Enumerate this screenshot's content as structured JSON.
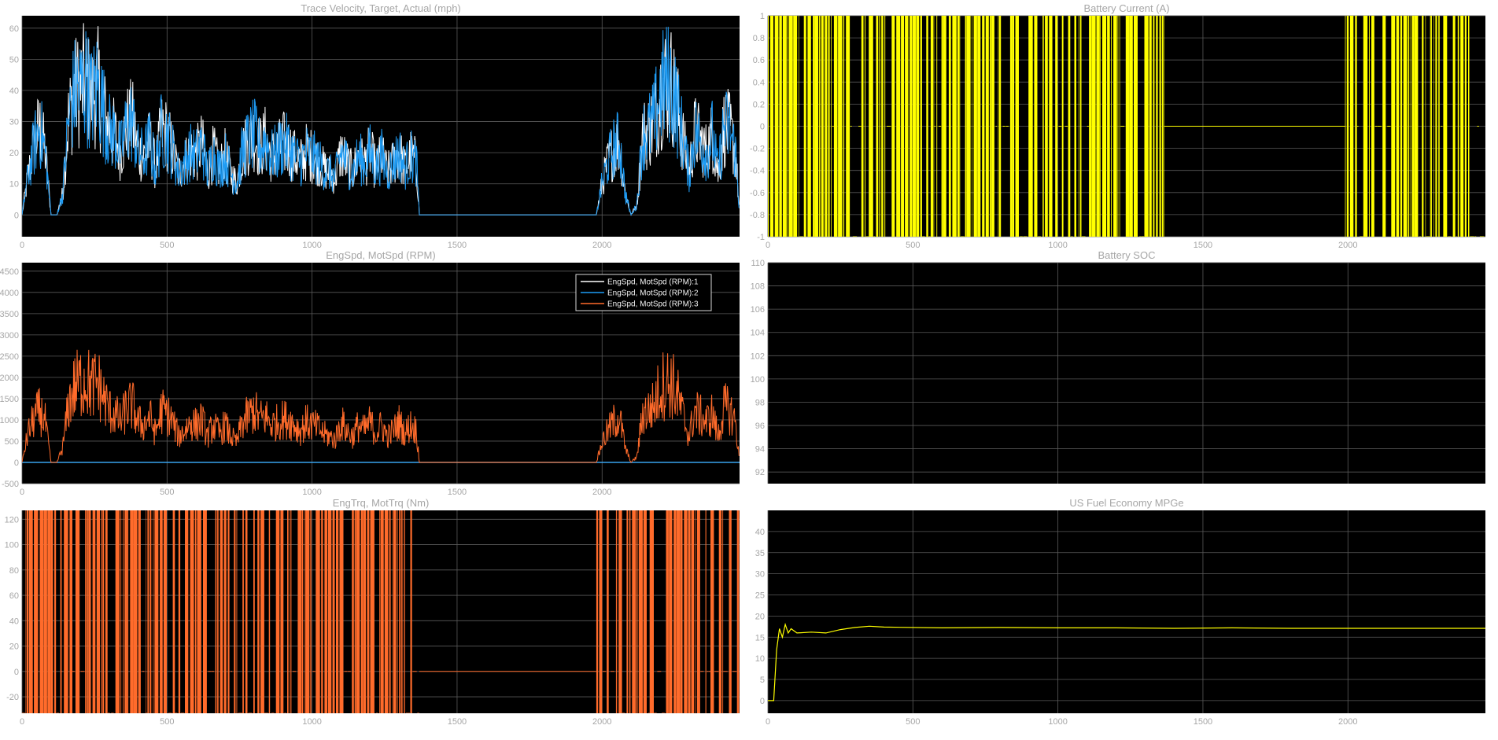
{
  "colors": {
    "background": "#ffffff",
    "axes_bg": "#000000",
    "grid": "#5a5a5a",
    "text": "#a6a6a6",
    "white": "#ffffff",
    "blue": "#1e9cf5",
    "orange": "#ff6b2b",
    "yellow": "#ffff00"
  },
  "chart_data": [
    {
      "id": "trace-velocity",
      "type": "line",
      "title": "Trace Velocity, Target, Actual (mph)",
      "xlim": [
        0,
        2474
      ],
      "ylim": [
        -7,
        64
      ],
      "xticks": [
        0,
        500,
        1000,
        1500,
        2000
      ],
      "xtick_labels": [
        "0",
        "500",
        "1000",
        "1500",
        "2000"
      ],
      "yticks": [
        0,
        10,
        20,
        30,
        40,
        50,
        60
      ],
      "ytick_labels": [
        "0",
        "10",
        "20",
        "30",
        "40",
        "50",
        "60"
      ],
      "grid": true,
      "series": [
        {
          "color": "#ffffff",
          "style": "dense",
          "x": [
            0,
            20,
            40,
            60,
            80,
            100,
            120,
            140,
            160,
            180,
            200,
            220,
            240,
            260,
            280,
            300,
            320,
            340,
            360,
            380,
            400,
            420,
            440,
            460,
            480,
            500,
            520,
            540,
            560,
            580,
            600,
            620,
            640,
            660,
            680,
            700,
            720,
            740,
            760,
            780,
            800,
            820,
            840,
            860,
            880,
            900,
            920,
            940,
            960,
            980,
            1000,
            1020,
            1040,
            1060,
            1080,
            1100,
            1120,
            1140,
            1160,
            1180,
            1200,
            1220,
            1240,
            1260,
            1280,
            1300,
            1320,
            1340,
            1360,
            1370,
            1980,
            2000,
            2020,
            2040,
            2060,
            2080,
            2100,
            2120,
            2140,
            2160,
            2180,
            2200,
            2220,
            2240,
            2260,
            2280,
            2300,
            2320,
            2340,
            2360,
            2380,
            2400,
            2420,
            2440,
            2460,
            2474
          ],
          "y": [
            0,
            18,
            32,
            42,
            30,
            0,
            0,
            10,
            45,
            58,
            60,
            63,
            55,
            62,
            50,
            40,
            38,
            30,
            42,
            45,
            30,
            28,
            35,
            22,
            40,
            38,
            30,
            20,
            25,
            30,
            28,
            34,
            20,
            30,
            22,
            28,
            20,
            15,
            30,
            35,
            38,
            32,
            36,
            28,
            30,
            34,
            32,
            28,
            25,
            30,
            28,
            26,
            22,
            20,
            18,
            30,
            25,
            20,
            28,
            24,
            30,
            22,
            28,
            20,
            25,
            30,
            22,
            28,
            25,
            0,
            0,
            15,
            25,
            32,
            35,
            10,
            0,
            5,
            38,
            40,
            45,
            58,
            63,
            62,
            50,
            35,
            20,
            40,
            35,
            30,
            38,
            20,
            42,
            40,
            30,
            0
          ]
        },
        {
          "color": "#1e9cf5",
          "style": "dense",
          "x": [
            0,
            20,
            40,
            60,
            80,
            100,
            120,
            140,
            160,
            180,
            200,
            220,
            240,
            260,
            280,
            300,
            320,
            340,
            360,
            380,
            400,
            420,
            440,
            460,
            480,
            500,
            520,
            540,
            560,
            580,
            600,
            620,
            640,
            660,
            680,
            700,
            720,
            740,
            760,
            780,
            800,
            820,
            840,
            860,
            880,
            900,
            920,
            940,
            960,
            980,
            1000,
            1020,
            1040,
            1060,
            1080,
            1100,
            1120,
            1140,
            1160,
            1180,
            1200,
            1220,
            1240,
            1260,
            1280,
            1300,
            1320,
            1340,
            1360,
            1370,
            1980,
            2000,
            2020,
            2040,
            2060,
            2080,
            2100,
            2120,
            2140,
            2160,
            2180,
            2200,
            2220,
            2240,
            2260,
            2280,
            2300,
            2320,
            2340,
            2360,
            2380,
            2400,
            2420,
            2440,
            2460,
            2474
          ],
          "y": [
            0,
            18,
            32,
            42,
            30,
            0,
            0,
            10,
            45,
            58,
            60,
            63,
            55,
            62,
            50,
            40,
            38,
            30,
            42,
            45,
            30,
            28,
            35,
            22,
            40,
            38,
            30,
            20,
            25,
            30,
            28,
            34,
            20,
            30,
            22,
            28,
            20,
            15,
            30,
            35,
            38,
            32,
            36,
            28,
            30,
            34,
            32,
            28,
            25,
            30,
            28,
            26,
            22,
            20,
            18,
            30,
            25,
            20,
            28,
            24,
            30,
            22,
            28,
            20,
            25,
            30,
            22,
            28,
            25,
            0,
            0,
            15,
            25,
            32,
            35,
            10,
            0,
            5,
            38,
            40,
            45,
            58,
            63,
            62,
            50,
            35,
            20,
            40,
            35,
            30,
            38,
            20,
            42,
            40,
            30,
            0
          ]
        }
      ]
    },
    {
      "id": "battery-current",
      "type": "line",
      "title": "Battery Current (A)",
      "xlim": [
        0,
        2474
      ],
      "ylim": [
        -1,
        1
      ],
      "xticks": [
        0,
        500,
        1000,
        1500,
        2000
      ],
      "xtick_labels": [
        "0",
        "500",
        "1000",
        "1500",
        "2000"
      ],
      "yticks": [
        -1,
        -0.8,
        -0.6,
        -0.4,
        -0.2,
        0,
        0.2,
        0.4,
        0.6,
        0.8,
        1
      ],
      "ytick_labels": [
        "-1",
        "-0.8",
        "-0.6",
        "-0.4",
        "-0.2",
        "0",
        "0.2",
        "0.4",
        "0.6",
        "0.8",
        "1"
      ],
      "grid": true,
      "series": [
        {
          "color": "#ffff00",
          "style": "square",
          "x": [
            0,
            1370,
            1370,
            1990,
            1990,
            2474
          ],
          "y": [
            1,
            1,
            0,
            0,
            1,
            1
          ]
        }
      ]
    },
    {
      "id": "eng-mot-spd",
      "type": "line",
      "title": "EngSpd, MotSpd (RPM)",
      "xlim": [
        0,
        2474
      ],
      "ylim": [
        -500,
        4700
      ],
      "xticks": [
        0,
        500,
        1000,
        1500,
        2000
      ],
      "xtick_labels": [
        "0",
        "500",
        "1000",
        "1500",
        "2000"
      ],
      "yticks": [
        -500,
        0,
        500,
        1000,
        1500,
        2000,
        2500,
        3000,
        3500,
        4000,
        4500
      ],
      "ytick_labels": [
        "-500",
        "0",
        "500",
        "1000",
        "1500",
        "2000",
        "2500",
        "3000",
        "3500",
        "4000",
        "4500"
      ],
      "grid": true,
      "legend": {
        "position": "top-right",
        "entries": [
          {
            "label": "EngSpd, MotSpd (RPM):1",
            "color": "#ffffff"
          },
          {
            "label": "EngSpd, MotSpd (RPM):2",
            "color": "#1e9cf5"
          },
          {
            "label": "EngSpd, MotSpd (RPM):3",
            "color": "#ff6b2b"
          }
        ]
      },
      "series": [
        {
          "name": "EngSpd, MotSpd (RPM):1",
          "color": "#ffffff",
          "style": "flat",
          "x": [
            0,
            2474
          ],
          "y": [
            0,
            0
          ]
        },
        {
          "name": "EngSpd, MotSpd (RPM):2",
          "color": "#1e9cf5",
          "style": "flat",
          "x": [
            0,
            2474
          ],
          "y": [
            0,
            0
          ]
        },
        {
          "name": "EngSpd, MotSpd (RPM):3",
          "color": "#ff6b2b",
          "style": "dense",
          "x": [
            0,
            20,
            40,
            60,
            80,
            100,
            120,
            140,
            160,
            180,
            200,
            220,
            240,
            260,
            280,
            300,
            320,
            340,
            360,
            380,
            400,
            420,
            440,
            460,
            480,
            500,
            520,
            540,
            560,
            580,
            600,
            620,
            640,
            660,
            680,
            700,
            720,
            740,
            760,
            780,
            800,
            820,
            840,
            860,
            880,
            900,
            920,
            940,
            960,
            980,
            1000,
            1020,
            1040,
            1060,
            1080,
            1100,
            1120,
            1140,
            1160,
            1180,
            1200,
            1220,
            1240,
            1260,
            1280,
            1300,
            1320,
            1340,
            1360,
            1370,
            1980,
            2000,
            2020,
            2040,
            2060,
            2080,
            2100,
            2120,
            2140,
            2160,
            2180,
            2200,
            2220,
            2240,
            2260,
            2280,
            2300,
            2320,
            2340,
            2360,
            2380,
            2400,
            2420,
            2440,
            2460,
            2474
          ],
          "y": [
            0,
            1000,
            1500,
            1800,
            1400,
            0,
            0,
            500,
            2000,
            2600,
            2800,
            2900,
            2600,
            2800,
            2300,
            1800,
            1700,
            1400,
            1900,
            2000,
            1400,
            1300,
            1600,
            1000,
            1800,
            1700,
            1400,
            900,
            1100,
            1400,
            1300,
            1500,
            900,
            1300,
            1000,
            1300,
            900,
            700,
            1400,
            1600,
            1800,
            1500,
            1600,
            1300,
            1400,
            1500,
            1500,
            1300,
            1100,
            1400,
            1300,
            1200,
            1000,
            900,
            800,
            1400,
            1100,
            900,
            1300,
            1100,
            1400,
            1000,
            1300,
            900,
            1100,
            1400,
            1000,
            1300,
            1100,
            0,
            0,
            700,
            1100,
            1400,
            1600,
            500,
            0,
            200,
            1700,
            1800,
            2000,
            2600,
            2800,
            2750,
            2300,
            1600,
            900,
            1800,
            1600,
            1400,
            1700,
            900,
            1900,
            1800,
            1400,
            0
          ]
        }
      ]
    },
    {
      "id": "battery-soc",
      "type": "line",
      "title": "Battery SOC",
      "xlim": [
        0,
        2474
      ],
      "ylim": [
        91,
        110
      ],
      "xticks": [
        0,
        500,
        1000,
        1500,
        2000
      ],
      "xtick_labels": [
        "",
        "",
        "",
        "",
        ""
      ],
      "yticks": [
        92,
        94,
        96,
        98,
        100,
        102,
        104,
        106,
        108,
        110
      ],
      "ytick_labels": [
        "92",
        "94",
        "96",
        "98",
        "100",
        "102",
        "104",
        "106",
        "108",
        "110"
      ],
      "grid": true,
      "series": []
    },
    {
      "id": "eng-mot-trq",
      "type": "line",
      "title": "EngTrq, MotTrq (Nm)",
      "xlim": [
        0,
        2474
      ],
      "ylim": [
        -33,
        127
      ],
      "xticks": [
        0,
        500,
        1000,
        1500,
        2000
      ],
      "xtick_labels": [
        "0",
        "500",
        "1000",
        "1500",
        "2000"
      ],
      "yticks": [
        -20,
        0,
        20,
        40,
        60,
        80,
        100,
        120
      ],
      "ytick_labels": [
        "-20",
        "0",
        "20",
        "40",
        "60",
        "80",
        "100",
        "120"
      ],
      "grid": true,
      "series": [
        {
          "color": "#ff6b2b",
          "style": "square",
          "x": [
            0,
            1370,
            1370,
            1980,
            1980,
            2474
          ],
          "y": [
            127,
            127,
            0,
            0,
            127,
            127
          ]
        }
      ]
    },
    {
      "id": "fuel-economy",
      "type": "line",
      "title": "US Fuel Economy MPGe",
      "xlim": [
        0,
        2474
      ],
      "ylim": [
        -3,
        45
      ],
      "xticks": [
        0,
        500,
        1000,
        1500,
        2000
      ],
      "xtick_labels": [
        "0",
        "500",
        "1000",
        "1500",
        "2000"
      ],
      "yticks": [
        0,
        5,
        10,
        15,
        20,
        25,
        30,
        35,
        40
      ],
      "ytick_labels": [
        "0",
        "5",
        "10",
        "15",
        "20",
        "25",
        "30",
        "35",
        "40"
      ],
      "grid": true,
      "series": [
        {
          "color": "#ffff00",
          "style": "line",
          "x": [
            0,
            20,
            30,
            40,
            50,
            60,
            70,
            80,
            100,
            150,
            200,
            250,
            300,
            350,
            400,
            600,
            800,
            1000,
            1200,
            1400,
            1600,
            1800,
            2000,
            2200,
            2474
          ],
          "y": [
            0,
            0,
            12,
            17,
            15,
            18,
            16,
            17,
            16,
            16.2,
            16,
            16.8,
            17.3,
            17.6,
            17.4,
            17.2,
            17.3,
            17.2,
            17.2,
            17.1,
            17.2,
            17.1,
            17.1,
            17.1,
            17.1
          ]
        }
      ]
    }
  ]
}
